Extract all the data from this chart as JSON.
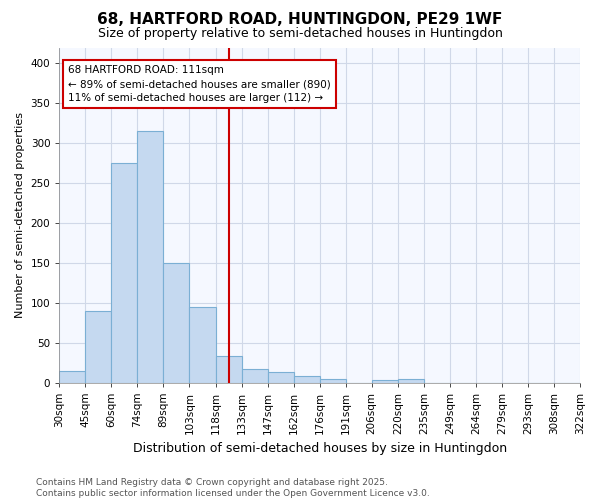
{
  "title": "68, HARTFORD ROAD, HUNTINGDON, PE29 1WF",
  "subtitle": "Size of property relative to semi-detached houses in Huntingdon",
  "xlabel": "Distribution of semi-detached houses by size in Huntingdon",
  "ylabel": "Number of semi-detached properties",
  "footnote": "Contains HM Land Registry data © Crown copyright and database right 2025.\nContains public sector information licensed under the Open Government Licence v3.0.",
  "bin_labels": [
    "30sqm",
    "45sqm",
    "60sqm",
    "74sqm",
    "89sqm",
    "103sqm",
    "118sqm",
    "133sqm",
    "147sqm",
    "162sqm",
    "176sqm",
    "191sqm",
    "206sqm",
    "220sqm",
    "235sqm",
    "249sqm",
    "264sqm",
    "279sqm",
    "293sqm",
    "308sqm",
    "322sqm"
  ],
  "bar_heights": [
    15,
    90,
    275,
    315,
    150,
    95,
    33,
    17,
    13,
    8,
    4,
    0,
    3,
    5,
    0,
    0,
    0,
    0,
    0,
    0
  ],
  "bar_color": "#c5d9f0",
  "bar_edge_color": "#7bafd4",
  "vline_position": 6.5,
  "vline_color": "#cc0000",
  "annotation_text": "68 HARTFORD ROAD: 111sqm\n← 89% of semi-detached houses are smaller (890)\n11% of semi-detached houses are larger (112) →",
  "annotation_box_color": "#cc0000",
  "ylim": [
    0,
    420
  ],
  "yticks": [
    0,
    50,
    100,
    150,
    200,
    250,
    300,
    350,
    400
  ],
  "background_color": "#ffffff",
  "plot_bg_color": "#f5f8ff",
  "grid_color": "#d0d8e8",
  "title_fontsize": 11,
  "subtitle_fontsize": 9,
  "xlabel_fontsize": 9,
  "ylabel_fontsize": 8,
  "tick_fontsize": 7.5,
  "footnote_fontsize": 6.5,
  "n_bars": 20
}
